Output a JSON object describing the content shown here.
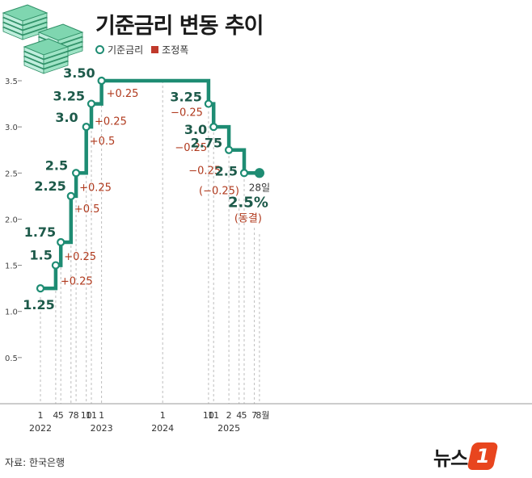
{
  "title": "기준금리 변동 추이",
  "legend": {
    "rate": "기준금리",
    "change": "조정폭"
  },
  "source": "자료: 한국은행",
  "logo": {
    "text": "뉴스",
    "badge": "1"
  },
  "colors": {
    "line": "#1e8c73",
    "rate_text": "#1d5a4a",
    "change_text": "#b03a1e",
    "change_marker": "#c0392b"
  },
  "chart_data": {
    "type": "line",
    "step": true,
    "ylim": [
      0,
      3.5
    ],
    "yticks": [
      "0.5",
      "1.0",
      "1.5",
      "2.0",
      "2.5",
      "3.0",
      "3.5"
    ],
    "x_month_labels": [
      "1",
      "4",
      "5",
      "7",
      "8",
      "10",
      "11",
      "1",
      "1",
      "10",
      "11",
      "2",
      "4",
      "5",
      "7",
      "8월"
    ],
    "x_year_labels": [
      "2022",
      "2023",
      "2024",
      "2025"
    ],
    "series": [
      {
        "name": "기준금리",
        "points": [
          {
            "date": "2022-01",
            "value": 1.25,
            "label": "1.25",
            "change": ""
          },
          {
            "date": "2022-04",
            "value": 1.5,
            "label": "1.5",
            "change": "+0.25"
          },
          {
            "date": "2022-05",
            "value": 1.75,
            "label": "1.75",
            "change": "+0.25"
          },
          {
            "date": "2022-07",
            "value": 2.25,
            "label": "2.25",
            "change": "+0.5"
          },
          {
            "date": "2022-08",
            "value": 2.5,
            "label": "2.5",
            "change": "+0.25"
          },
          {
            "date": "2022-10",
            "value": 3.0,
            "label": "3.0",
            "change": "+0.5"
          },
          {
            "date": "2022-11",
            "value": 3.25,
            "label": "3.25",
            "change": "+0.25"
          },
          {
            "date": "2023-01",
            "value": 3.5,
            "label": "3.50",
            "change": "+0.25"
          },
          {
            "date": "2024-10",
            "value": 3.25,
            "label": "3.25",
            "change": "−0.25"
          },
          {
            "date": "2024-11",
            "value": 3.0,
            "label": "3.0",
            "change": "−0.25"
          },
          {
            "date": "2025-02",
            "value": 2.75,
            "label": "2.75",
            "change": "−0.25"
          },
          {
            "date": "2025-05",
            "value": 2.5,
            "label": "2.5",
            "change": "(−0.25)"
          },
          {
            "date": "2025-08",
            "value": 2.5,
            "label": "",
            "change": ""
          }
        ]
      }
    ],
    "annotation": {
      "day": "28일",
      "rate": "2.5%",
      "note": "(동결)"
    }
  }
}
